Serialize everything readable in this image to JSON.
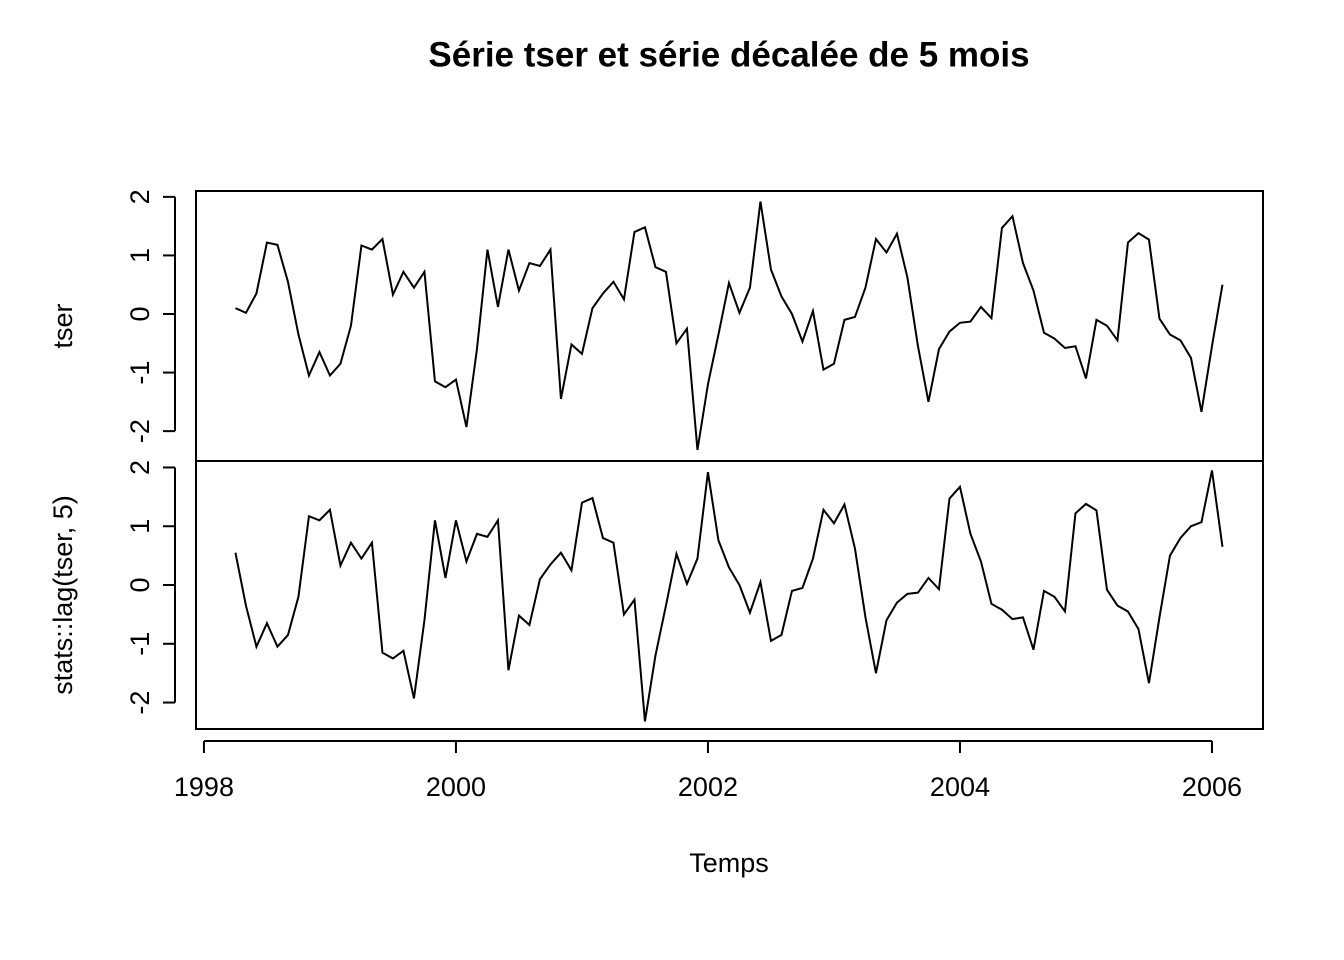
{
  "chart_data": {
    "type": "line",
    "title": "Série tser et série décalée de 5 mois",
    "xlabel": "Temps",
    "x": [
      1998.25,
      1998.3333,
      1998.4167,
      1998.5,
      1998.5833,
      1998.6667,
      1998.75,
      1998.8333,
      1998.9167,
      1999,
      1999.0833,
      1999.1667,
      1999.25,
      1999.3333,
      1999.4167,
      1999.5,
      1999.5833,
      1999.6667,
      1999.75,
      1999.8333,
      1999.9167,
      2000,
      2000.0833,
      2000.1667,
      2000.25,
      2000.3333,
      2000.4167,
      2000.5,
      2000.5833,
      2000.6667,
      2000.75,
      2000.8333,
      2000.9167,
      2001,
      2001.0833,
      2001.1667,
      2001.25,
      2001.3333,
      2001.4167,
      2001.5,
      2001.5833,
      2001.6667,
      2001.75,
      2001.8333,
      2001.9167,
      2002,
      2002.0833,
      2002.1667,
      2002.25,
      2002.3333,
      2002.4167,
      2002.5,
      2002.5833,
      2002.6667,
      2002.75,
      2002.8333,
      2002.9167,
      2003,
      2003.0833,
      2003.1667,
      2003.25,
      2003.3333,
      2003.4167,
      2003.5,
      2003.5833,
      2003.6667,
      2003.75,
      2003.8333,
      2003.9167,
      2004,
      2004.0833,
      2004.1667,
      2004.25,
      2004.3333,
      2004.4167,
      2004.5,
      2004.5833,
      2004.6667,
      2004.75,
      2004.8333,
      2004.9167,
      2005,
      2005.0833,
      2005.1667,
      2005.25,
      2005.3333,
      2005.4167,
      2005.5,
      2005.5833,
      2005.6667,
      2005.75,
      2005.8333,
      2005.9167,
      2006,
      2006.0833
    ],
    "xlim": [
      1997.937,
      2006.405
    ],
    "xticks": [
      1998,
      2000,
      2002,
      2004,
      2006
    ],
    "color": "#000000",
    "panels": [
      {
        "ylabel": "tser",
        "ylim": [
          -2.51,
          2.1
        ],
        "yticks": [
          -2,
          -1,
          0,
          1,
          2
        ],
        "values": [
          0.1,
          0.02,
          0.35,
          1.22,
          1.18,
          0.55,
          -0.35,
          -1.05,
          -0.65,
          -1.05,
          -0.85,
          -0.2,
          1.17,
          1.1,
          1.28,
          0.33,
          0.72,
          0.45,
          0.72,
          -1.15,
          -1.25,
          -1.12,
          -1.93,
          -0.6,
          1.1,
          0.12,
          1.1,
          0.4,
          0.87,
          0.82,
          1.1,
          -1.45,
          -0.52,
          -0.68,
          0.1,
          0.35,
          0.55,
          0.25,
          1.4,
          1.48,
          0.8,
          0.72,
          -0.5,
          -0.25,
          -2.32,
          -1.2,
          -0.35,
          0.53,
          0.02,
          0.45,
          1.92,
          0.76,
          0.3,
          0.0,
          -0.47,
          0.05,
          -0.95,
          -0.85,
          -0.1,
          -0.05,
          0.45,
          1.28,
          1.05,
          1.37,
          0.62,
          -0.55,
          -1.5,
          -0.6,
          -0.3,
          -0.15,
          -0.13,
          0.12,
          -0.07,
          1.47,
          1.67,
          0.87,
          0.4,
          -0.32,
          -0.42,
          -0.58,
          -0.55,
          -1.1,
          -0.1,
          -0.2,
          -0.45,
          1.22,
          1.38,
          1.27,
          -0.08,
          -0.35,
          -0.45,
          -0.75,
          -1.67,
          -0.55,
          0.5
        ]
      },
      {
        "ylabel": "stats::lag(tser, 5)",
        "ylim": [
          -2.45,
          2.11
        ],
        "yticks": [
          -2,
          -1,
          0,
          1,
          2
        ],
        "values": [
          0.55,
          -0.35,
          -1.05,
          -0.65,
          -1.05,
          -0.85,
          -0.2,
          1.17,
          1.1,
          1.28,
          0.33,
          0.72,
          0.45,
          0.72,
          -1.15,
          -1.25,
          -1.12,
          -1.93,
          -0.6,
          1.1,
          0.12,
          1.1,
          0.4,
          0.87,
          0.82,
          1.1,
          -1.45,
          -0.52,
          -0.68,
          0.1,
          0.35,
          0.55,
          0.25,
          1.4,
          1.48,
          0.8,
          0.72,
          -0.5,
          -0.25,
          -2.32,
          -1.2,
          -0.35,
          0.53,
          0.02,
          0.45,
          1.92,
          0.76,
          0.3,
          0.0,
          -0.47,
          0.05,
          -0.95,
          -0.85,
          -0.1,
          -0.05,
          0.45,
          1.28,
          1.05,
          1.37,
          0.62,
          -0.55,
          -1.5,
          -0.6,
          -0.3,
          -0.15,
          -0.13,
          0.12,
          -0.07,
          1.47,
          1.67,
          0.87,
          0.4,
          -0.32,
          -0.42,
          -0.58,
          -0.55,
          -1.1,
          -0.1,
          -0.2,
          -0.45,
          1.22,
          1.38,
          1.27,
          -0.08,
          -0.35,
          -0.45,
          -0.75,
          -1.67,
          -0.55,
          0.5,
          0.8,
          1.0,
          1.07,
          1.95,
          0.65
        ]
      }
    ]
  }
}
